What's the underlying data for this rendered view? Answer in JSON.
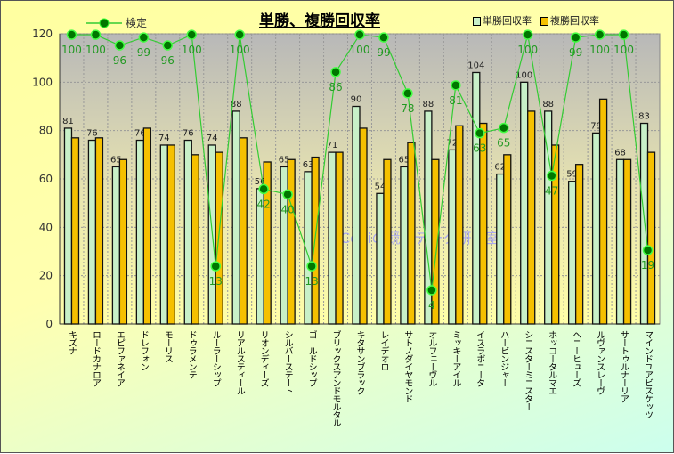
{
  "chart_data": {
    "type": "bar",
    "title": "単勝、複勝回収率",
    "watermark": "©Coniの競馬データ研究室",
    "ylim": [
      0,
      120
    ],
    "yticks": [
      0,
      20,
      40,
      60,
      80,
      100,
      120
    ],
    "legend_placement": "top",
    "categories": [
      "キズナ",
      "ロードカナロア",
      "エピファネイア",
      "ドレフォン",
      "モーリス",
      "ドゥラメンテ",
      "ルーラーシップ",
      "リアルスティール",
      "リオンディーズ",
      "シルバーステート",
      "ゴールドシップ",
      "ブリックスアンドモルタル",
      "キタサンブラック",
      "レイデオロ",
      "サトノダイヤモンド",
      "オルフェーヴル",
      "ミッキーアイル",
      "イスラボニータ",
      "ハービンジャー",
      "シニスターミニスター",
      "ホッコータルマエ",
      "ヘニーヒューズ",
      "ルヴァンスレーヴ",
      "サートゥルナーリア",
      "マインドユアビスケッツ"
    ],
    "series": [
      {
        "name": "単勝回収率",
        "type": "bar",
        "color": "#c8f0c8",
        "values": [
          81,
          76,
          65,
          76,
          74,
          76,
          74,
          88,
          56,
          65,
          63,
          71,
          90,
          54,
          65,
          88,
          72,
          104,
          62,
          100,
          88,
          59,
          79,
          68,
          83
        ]
      },
      {
        "name": "複勝回収率",
        "type": "bar",
        "color": "#f5c000",
        "values": [
          77,
          77,
          68,
          81,
          74,
          70,
          71,
          77,
          67,
          68,
          69,
          71,
          81,
          68,
          75,
          68,
          82,
          83,
          70,
          88,
          74,
          66,
          93,
          68,
          71
        ]
      },
      {
        "name": "検定",
        "type": "line",
        "color": "#33cc33",
        "values": [
          100,
          100,
          96,
          99,
          96,
          100,
          13,
          100,
          42,
          40,
          13,
          86,
          100,
          99,
          78,
          4,
          81,
          63,
          65,
          100,
          47,
          99,
          100,
          100,
          19
        ]
      }
    ]
  }
}
